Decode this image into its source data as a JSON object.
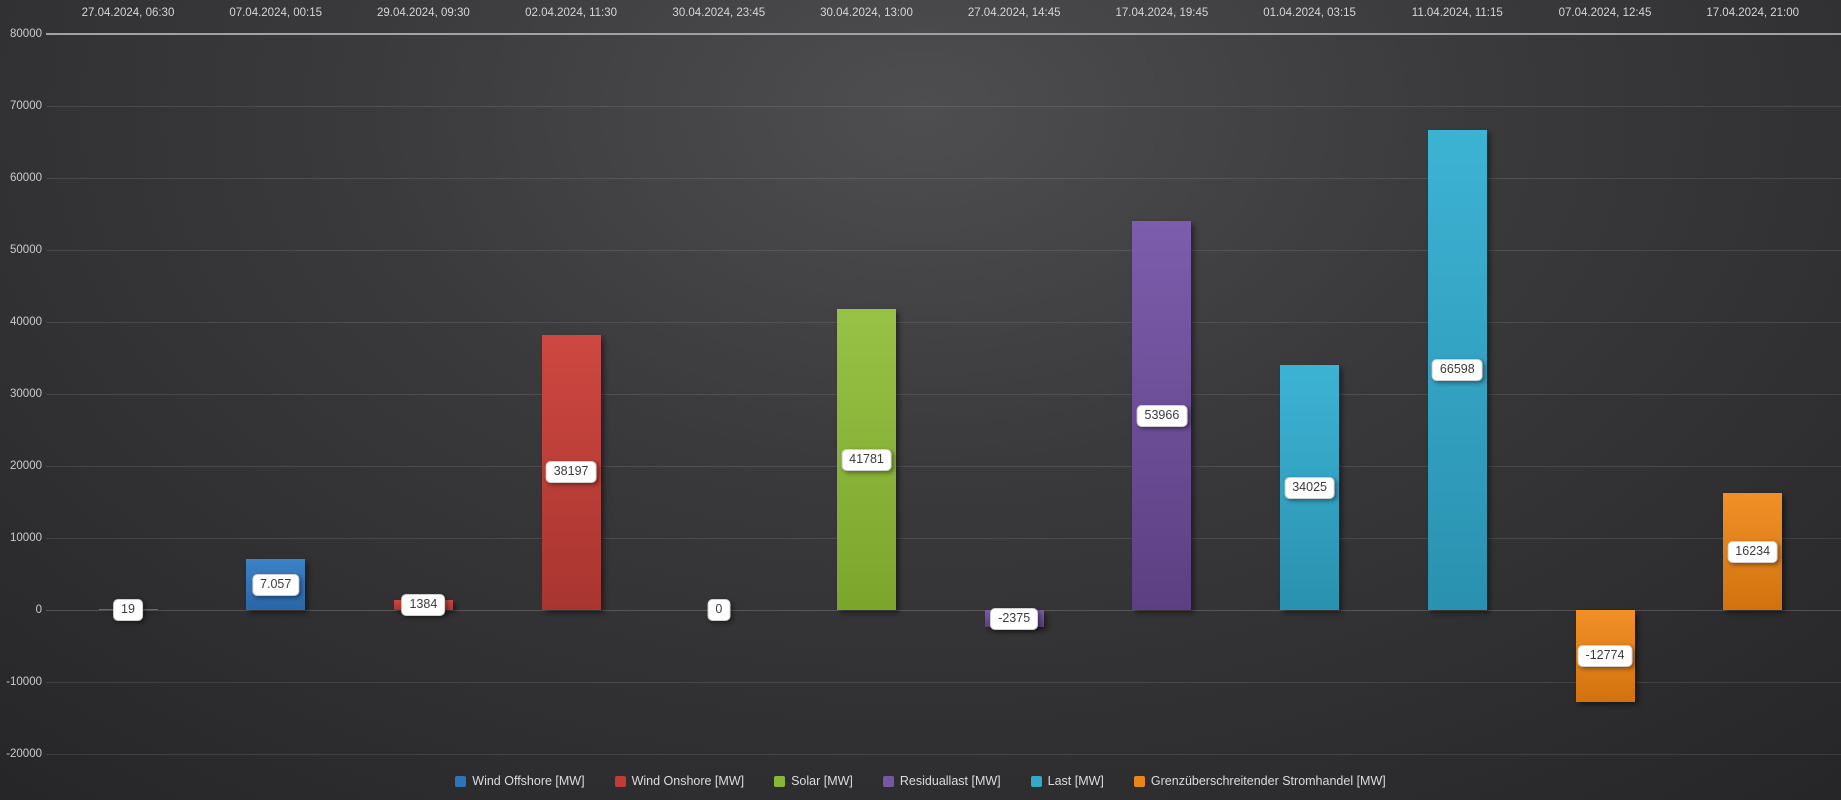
{
  "chart_data": {
    "type": "bar",
    "title": "",
    "x_axis_position": "top",
    "legend_position": "bottom",
    "grid": true,
    "ylim": [
      -20000,
      80000
    ],
    "ytick_interval": 10000,
    "yticks": [
      "80000",
      "70000",
      "60000",
      "50000",
      "40000",
      "30000",
      "20000",
      "10000",
      "0",
      "-10000",
      "-20000"
    ],
    "ytick_values": [
      80000,
      70000,
      60000,
      50000,
      40000,
      30000,
      20000,
      10000,
      0,
      -10000,
      -20000
    ],
    "categories": [
      "27.04.2024, 06:30",
      "07.04.2024, 00:15",
      "29.04.2024, 09:30",
      "02.04.2024, 11:30",
      "30.04.2024, 23:45",
      "30.04.2024, 13:00",
      "27.04.2024, 14:45",
      "17.04.2024, 19:45",
      "01.04.2024, 03:15",
      "11.04.2024, 11:15",
      "07.04.2024, 12:45",
      "17.04.2024, 21:00"
    ],
    "series": [
      {
        "name": "Wind Offshore [MW]",
        "color": "#2E74B9",
        "color_top": "#3C82C6",
        "color_bottom": "#2A66A8"
      },
      {
        "name": "Wind Onshore [MW]",
        "color": "#C23B36",
        "color_top": "#CD4840",
        "color_bottom": "#A93530"
      },
      {
        "name": "Solar [MW]",
        "color": "#8AB637",
        "color_top": "#97C245",
        "color_bottom": "#7CA52C"
      },
      {
        "name": "Residuallast [MW]",
        "color": "#7458A3",
        "color_top": "#7C5DAD",
        "color_bottom": "#5C3F82"
      },
      {
        "name": "Last [MW]",
        "color": "#35A8C8",
        "color_top": "#3DB3D4",
        "color_bottom": "#2A91B0"
      },
      {
        "name": "Grenzüberschreitender Stromhandel [MW]",
        "color": "#E8861B",
        "color_top": "#F29027",
        "color_bottom": "#D1720E"
      }
    ],
    "bars": [
      {
        "category": "27.04.2024, 06:30",
        "series": 0,
        "value": 19,
        "label": "19"
      },
      {
        "category": "07.04.2024, 00:15",
        "series": 0,
        "value": 7057,
        "label": "7.057"
      },
      {
        "category": "29.04.2024, 09:30",
        "series": 1,
        "value": 1384,
        "label": "1384"
      },
      {
        "category": "02.04.2024, 11:30",
        "series": 1,
        "value": 38197,
        "label": "38197"
      },
      {
        "category": "30.04.2024, 23:45",
        "series": 2,
        "value": 0,
        "label": "0"
      },
      {
        "category": "30.04.2024, 13:00",
        "series": 2,
        "value": 41781,
        "label": "41781"
      },
      {
        "category": "27.04.2024, 14:45",
        "series": 3,
        "value": -2375,
        "label": "-2375"
      },
      {
        "category": "17.04.2024, 19:45",
        "series": 3,
        "value": 53966,
        "label": "53966"
      },
      {
        "category": "01.04.2024, 03:15",
        "series": 4,
        "value": 34025,
        "label": "34025"
      },
      {
        "category": "11.04.2024, 11:15",
        "series": 4,
        "value": 66598,
        "label": "66598"
      },
      {
        "category": "07.04.2024, 12:45",
        "series": 5,
        "value": -12774,
        "label": "-12774"
      },
      {
        "category": "17.04.2024, 21:00",
        "series": 5,
        "value": 16234,
        "label": "16234"
      }
    ]
  },
  "colors": {
    "background_center": "#4E4E50",
    "background_edge": "#262628",
    "gridline": "rgba(255,255,255,0.10)",
    "zero_line": "rgba(255,255,255,0.18)",
    "axis_line": "#A2A2A2",
    "axis_text": "#D6D6D6",
    "ytick_text": "#CBCBCB",
    "legend_text": "#DCDCDC",
    "label_box_bg": "#FFFFFF",
    "label_box_text": "#3C3C3C"
  }
}
